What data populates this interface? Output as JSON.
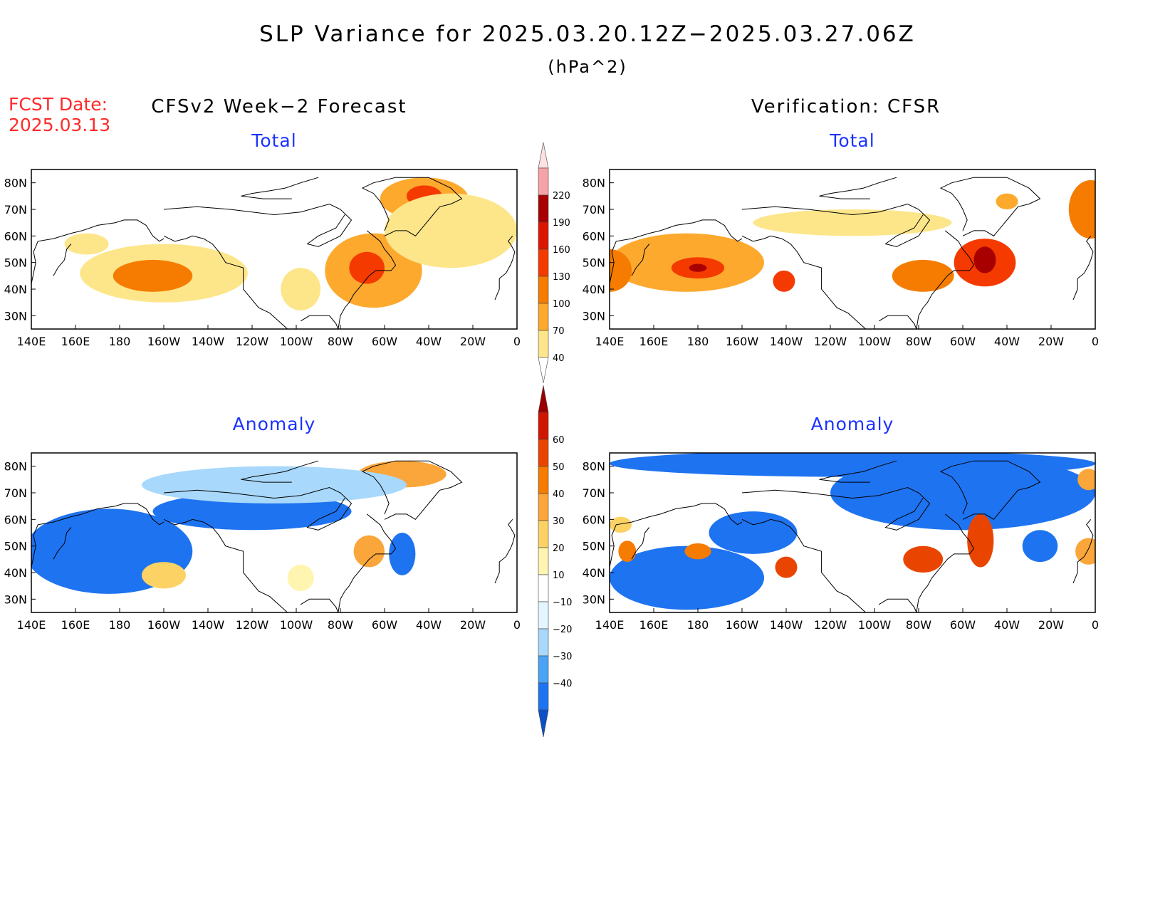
{
  "figure": {
    "title": "SLP Variance for 2025.03.20.12Z−2025.03.27.06Z",
    "units": "(hPa^2)",
    "fcst_label": "FCST Date:",
    "fcst_date": "2025.03.13",
    "left_column": "CFSv2 Week−2 Forecast",
    "right_column": "Verification: CFSR",
    "lon_ticks": [
      "140E",
      "160E",
      "180",
      "160W",
      "140W",
      "120W",
      "100W",
      "80W",
      "60W",
      "40W",
      "20W",
      "0"
    ],
    "lat_ticks": [
      "80N",
      "70N",
      "60N",
      "50N",
      "40N",
      "30N"
    ]
  },
  "chart_data": [
    {
      "type": "heatmap",
      "id": "forecast-total",
      "title": "Total",
      "xlim": [
        140,
        360
      ],
      "ylim": [
        25,
        85
      ],
      "scale": "total",
      "features": [
        {
          "lon": 165,
          "lat": 57,
          "rx": 10,
          "ry": 4,
          "value": 55
        },
        {
          "lon": 200,
          "lat": 46,
          "rx": 38,
          "ry": 11,
          "value": 68
        },
        {
          "lon": 195,
          "lat": 45,
          "rx": 18,
          "ry": 6,
          "value": 100
        },
        {
          "lon": 262,
          "lat": 40,
          "rx": 9,
          "ry": 8,
          "value": 62
        },
        {
          "lon": 295,
          "lat": 47,
          "rx": 22,
          "ry": 14,
          "value": 90
        },
        {
          "lon": 292,
          "lat": 48,
          "rx": 8,
          "ry": 6,
          "value": 140
        },
        {
          "lon": 318,
          "lat": 74,
          "rx": 20,
          "ry": 8,
          "value": 95
        },
        {
          "lon": 318,
          "lat": 75,
          "rx": 8,
          "ry": 4,
          "value": 150
        },
        {
          "lon": 330,
          "lat": 62,
          "rx": 30,
          "ry": 14,
          "value": 60
        }
      ]
    },
    {
      "type": "heatmap",
      "id": "verification-total",
      "title": "Total",
      "xlim": [
        140,
        360
      ],
      "ylim": [
        25,
        85
      ],
      "scale": "total",
      "features": [
        {
          "lon": 175,
          "lat": 50,
          "rx": 35,
          "ry": 11,
          "value": 85
        },
        {
          "lon": 180,
          "lat": 48,
          "rx": 12,
          "ry": 4,
          "value": 150
        },
        {
          "lon": 180,
          "lat": 48,
          "rx": 4,
          "ry": 1.5,
          "value": 210
        },
        {
          "lon": 140,
          "lat": 47,
          "rx": 10,
          "ry": 8,
          "value": 115
        },
        {
          "lon": 219,
          "lat": 43,
          "rx": 5,
          "ry": 4,
          "value": 140
        },
        {
          "lon": 282,
          "lat": 45,
          "rx": 14,
          "ry": 6,
          "value": 115
        },
        {
          "lon": 310,
          "lat": 50,
          "rx": 14,
          "ry": 9,
          "value": 140
        },
        {
          "lon": 310,
          "lat": 51,
          "rx": 5,
          "ry": 5,
          "value": 210
        },
        {
          "lon": 320,
          "lat": 73,
          "rx": 5,
          "ry": 3,
          "value": 85
        },
        {
          "lon": 358,
          "lat": 70,
          "rx": 10,
          "ry": 11,
          "value": 100
        },
        {
          "lon": 250,
          "lat": 65,
          "rx": 45,
          "ry": 5,
          "value": 45
        }
      ]
    },
    {
      "type": "heatmap",
      "id": "forecast-anomaly",
      "title": "Anomaly",
      "xlim": [
        140,
        360
      ],
      "ylim": [
        25,
        85
      ],
      "scale": "anomaly",
      "features": [
        {
          "lon": 175,
          "lat": 48,
          "rx": 38,
          "ry": 16,
          "value": -40
        },
        {
          "lon": 240,
          "lat": 63,
          "rx": 45,
          "ry": 7,
          "value": -35
        },
        {
          "lon": 308,
          "lat": 47,
          "rx": 6,
          "ry": 8,
          "value": -40
        },
        {
          "lon": 200,
          "lat": 39,
          "rx": 10,
          "ry": 5,
          "value": 35
        },
        {
          "lon": 262,
          "lat": 38,
          "rx": 6,
          "ry": 5,
          "value": 25
        },
        {
          "lon": 293,
          "lat": 48,
          "rx": 7,
          "ry": 6,
          "value": 45
        },
        {
          "lon": 308,
          "lat": 77,
          "rx": 20,
          "ry": 5,
          "value": 45
        },
        {
          "lon": 250,
          "lat": 73,
          "rx": 60,
          "ry": 7,
          "value": -15
        }
      ]
    },
    {
      "type": "heatmap",
      "id": "verification-anomaly",
      "title": "Anomaly",
      "xlim": [
        140,
        360
      ],
      "ylim": [
        25,
        85
      ],
      "scale": "anomaly",
      "features": [
        {
          "lon": 250,
          "lat": 81,
          "rx": 110,
          "ry": 5,
          "value": -40
        },
        {
          "lon": 300,
          "lat": 70,
          "rx": 60,
          "ry": 14,
          "value": -40
        },
        {
          "lon": 175,
          "lat": 38,
          "rx": 35,
          "ry": 12,
          "value": -40
        },
        {
          "lon": 205,
          "lat": 55,
          "rx": 20,
          "ry": 8,
          "value": -40
        },
        {
          "lon": 180,
          "lat": 48,
          "rx": 6,
          "ry": 3,
          "value": 50
        },
        {
          "lon": 220,
          "lat": 42,
          "rx": 5,
          "ry": 4,
          "value": 60
        },
        {
          "lon": 282,
          "lat": 45,
          "rx": 9,
          "ry": 5,
          "value": 60
        },
        {
          "lon": 308,
          "lat": 52,
          "rx": 6,
          "ry": 10,
          "value": 60
        },
        {
          "lon": 148,
          "lat": 48,
          "rx": 4,
          "ry": 4,
          "value": 50
        },
        {
          "lon": 145,
          "lat": 58,
          "rx": 5,
          "ry": 3,
          "value": 30
        },
        {
          "lon": 357,
          "lat": 75,
          "rx": 5,
          "ry": 4,
          "value": 45
        },
        {
          "lon": 357,
          "lat": 48,
          "rx": 6,
          "ry": 5,
          "value": 40
        },
        {
          "lon": 335,
          "lat": 50,
          "rx": 8,
          "ry": 6,
          "value": -40
        }
      ]
    }
  ],
  "colorbars": {
    "total": {
      "labels": [
        "40",
        "70",
        "100",
        "130",
        "160",
        "190",
        "220"
      ],
      "colors": [
        "#ffffff",
        "#fde68a",
        "#fca92e",
        "#f57c00",
        "#f53a00",
        "#db1500",
        "#a80000",
        "#f5a3a8",
        "#ffe1e1"
      ]
    },
    "anomaly": {
      "labels": [
        "−40",
        "−30",
        "−20",
        "−10",
        "10",
        "20",
        "30",
        "40",
        "50",
        "60"
      ],
      "colors": [
        "#0a50c8",
        "#1e73f0",
        "#4aa3f5",
        "#a8d8fb",
        "#e3f6ff",
        "#ffffff",
        "#fff5b0",
        "#fdd265",
        "#fba63a",
        "#f57c00",
        "#ea4500",
        "#d01500",
        "#9a0000"
      ]
    }
  }
}
